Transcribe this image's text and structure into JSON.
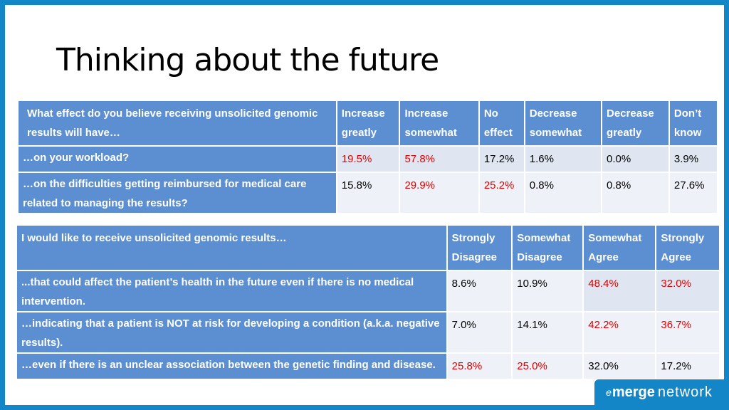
{
  "title": "Thinking about the future",
  "table1": {
    "question_header": "What effect do you believe receiving unsolicited genomic results will have…",
    "columns": [
      "Increase greatly",
      "Increase somewhat",
      "No effect",
      "Decrease somewhat",
      "Decrease greatly",
      "Don’t know"
    ],
    "rows": [
      {
        "label": "…on your workload?",
        "values": [
          "19.5%",
          "57.8%",
          "17.2%",
          "1.6%",
          "0.0%",
          "3.9%"
        ]
      },
      {
        "label": "…on the difficulties getting reimbursed for medical care related to managing the results?",
        "values": [
          "15.8%",
          "29.9%",
          "25.2%",
          "0.8%",
          "0.8%",
          "27.6%"
        ]
      }
    ],
    "highlight_color": "#e00000"
  },
  "table2": {
    "question_header": "I would like to receive unsolicited genomic results…",
    "columns": [
      "Strongly Disagree",
      "Somewhat Disagree",
      "Somewhat Agree",
      "Strongly Agree"
    ],
    "rows": [
      {
        "label": "...that could affect the patient’s health in the future even if there is no medical intervention.",
        "values": [
          "8.6%",
          "10.9%",
          "48.4%",
          "32.0%"
        ]
      },
      {
        "label": "…indicating that a patient is NOT at risk for developing a condition (a.k.a. negative results).",
        "values": [
          "7.0%",
          "14.1%",
          "42.2%",
          "36.7%"
        ]
      },
      {
        "label": "…even if there is an unclear association between the genetic finding and disease.",
        "values": [
          "25.8%",
          "25.0%",
          "32.0%",
          "17.2%"
        ]
      }
    ]
  },
  "logo": {
    "prefix": "e",
    "brand": "merge",
    "suffix": "network"
  },
  "colors": {
    "header_blue": "#5b8fd1",
    "frame_blue": "#1386c8",
    "cell_light": "#dfe6f1"
  }
}
